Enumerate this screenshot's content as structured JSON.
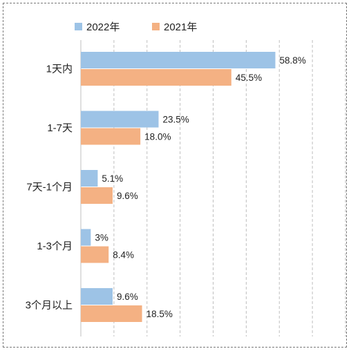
{
  "chart_data": {
    "type": "bar",
    "orientation": "horizontal",
    "categories": [
      "1天内",
      "1-7天",
      "7天-1个月",
      "1-3个月",
      "3个月以上"
    ],
    "series": [
      {
        "name": "2022年",
        "color": "#9DC3E6",
        "values": [
          58.8,
          23.5,
          5.1,
          3,
          9.6
        ],
        "labels": [
          "58.8%",
          "23.5%",
          "5.1%",
          "3%",
          "9.6%"
        ]
      },
      {
        "name": "2021年",
        "color": "#F4B183",
        "values": [
          45.5,
          18.0,
          9.6,
          8.4,
          18.5
        ],
        "labels": [
          "45.5%",
          "18.0%",
          "9.6%",
          "8.4%",
          "18.5%"
        ]
      }
    ],
    "xlim": [
      0,
      80
    ],
    "x_tick_step": 10,
    "grid": true,
    "legend": "top-left"
  }
}
